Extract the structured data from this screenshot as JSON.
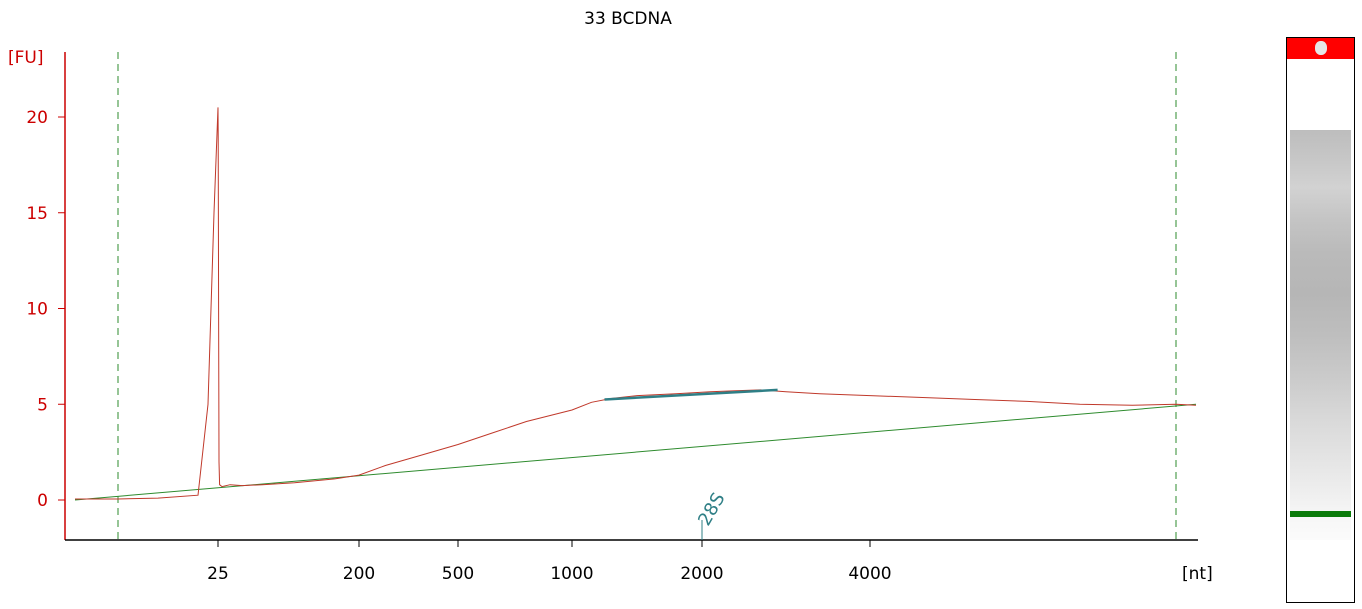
{
  "chart_data": {
    "type": "line",
    "title": "33 BCDNA",
    "ylabel": "[FU]",
    "xlabel": "[nt]",
    "y_ticks": [
      "0",
      "5",
      "10",
      "15",
      "20"
    ],
    "x_ticks": [
      "25",
      "200",
      "500",
      "1000",
      "2000",
      "4000"
    ],
    "ylim": [
      -2,
      23
    ],
    "annotations": [
      {
        "label": "28S",
        "x": 2000
      }
    ],
    "colors": {
      "axis": "#cc0000",
      "trace": "#c0392b",
      "baseline": "#2e8b2e",
      "marker_lines": "#2e8b2e",
      "peak_fit": "#2f7f86",
      "annotation": "#2f7f86"
    },
    "series": [
      {
        "values": [
          [
            15,
            0.05
          ],
          [
            20,
            0.05
          ],
          [
            22,
            0.1
          ],
          [
            24,
            0.25
          ],
          [
            24.5,
            5
          ],
          [
            24.8,
            15
          ],
          [
            25,
            20.5
          ],
          [
            25.3,
            19
          ],
          [
            25.7,
            10
          ],
          [
            26.2,
            2
          ],
          [
            27,
            0.8
          ],
          [
            30,
            0.7
          ],
          [
            40,
            0.8
          ],
          [
            55,
            0.75
          ],
          [
            80,
            0.8
          ],
          [
            120,
            0.9
          ],
          [
            170,
            1.1
          ],
          [
            200,
            1.3
          ],
          [
            280,
            1.8
          ],
          [
            380,
            2.3
          ],
          [
            500,
            2.9
          ],
          [
            650,
            3.5
          ],
          [
            800,
            4.1
          ],
          [
            1000,
            4.7
          ],
          [
            1150,
            5.1
          ],
          [
            1300,
            5.3
          ],
          [
            1500,
            5.45
          ],
          [
            1800,
            5.55
          ],
          [
            2100,
            5.65
          ],
          [
            2400,
            5.7
          ],
          [
            2700,
            5.75
          ],
          [
            3000,
            5.65
          ],
          [
            3400,
            5.55
          ],
          [
            4000,
            5.45
          ],
          [
            4600,
            5.35
          ],
          [
            5200,
            5.25
          ],
          [
            5800,
            5.15
          ],
          [
            6400,
            5.0
          ],
          [
            7000,
            4.95
          ],
          [
            7500,
            5.0
          ],
          [
            7900,
            4.95
          ]
        ]
      },
      {
        "values": [
          [
            15,
            0.0
          ],
          [
            7900,
            5.0
          ]
        ]
      }
    ],
    "peak_fit": {
      "x": [
        1250,
        2900
      ],
      "y": [
        5.25,
        5.75
      ]
    },
    "marker_bounds": {
      "x": [
        20,
        7500
      ]
    }
  },
  "gel": {
    "lower_marker_color": "#0a7a0a",
    "upper_marker_color": "#ff0000"
  }
}
